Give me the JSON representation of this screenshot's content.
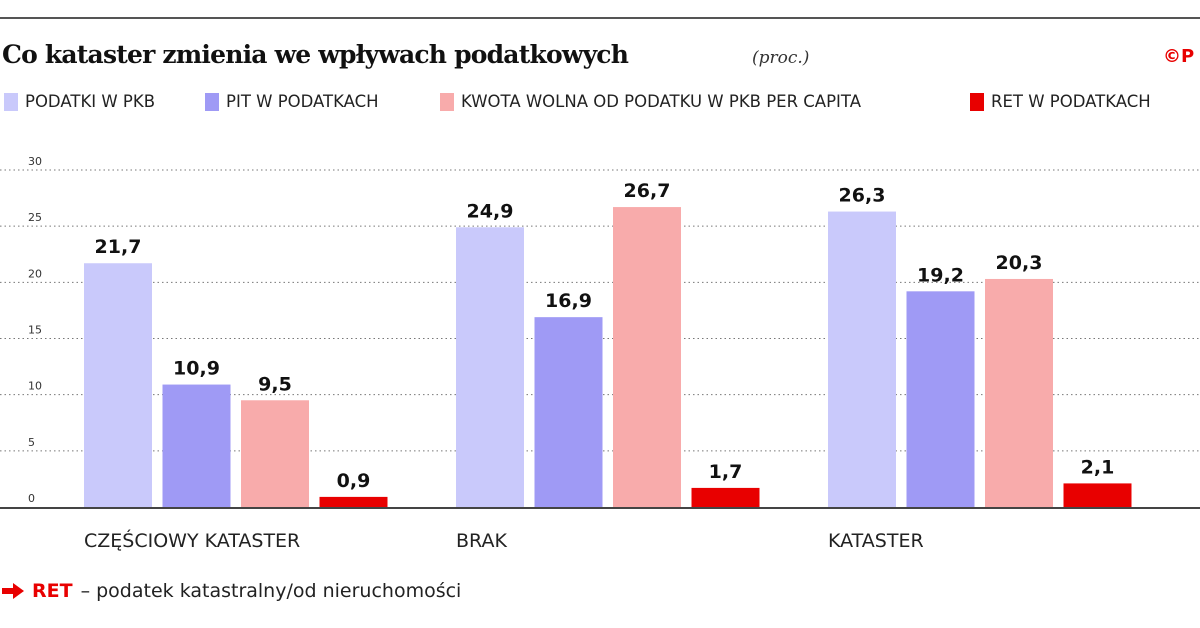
{
  "title": "Co kataster zmienia we wpływach podatkowych",
  "unit": "(proc.)",
  "logo_text": "©P",
  "footnote": {
    "term": "RET",
    "text": "– podatek katastralny/od nieruchomości",
    "icon": "arrow-right-icon"
  },
  "chart_data": {
    "type": "bar",
    "title": "Co kataster zmienia we wpływach podatkowych",
    "subtitle": "(proc.)",
    "categories": [
      "CZĘŚCIOWY KATASTER",
      "BRAK",
      "KATASTER"
    ],
    "series": [
      {
        "name": "PODATKI W PKB",
        "color": "#c9c9fb",
        "values": [
          21.7,
          24.9,
          26.3
        ],
        "labels": [
          "21,7",
          "24,9",
          "26,3"
        ]
      },
      {
        "name": "PIT W PODATKACH",
        "color": "#9f9af5",
        "values": [
          10.9,
          16.9,
          19.2
        ],
        "labels": [
          "10,9",
          "16,9",
          "19,2"
        ]
      },
      {
        "name": "KWOTA WOLNA OD PODATKU W PKB PER CAPITA",
        "color": "#f8abab",
        "values": [
          9.5,
          26.7,
          20.3
        ],
        "labels": [
          "9,5",
          "26,7",
          "20,3"
        ]
      },
      {
        "name": "RET W PODATKACH",
        "color": "#e80000",
        "values": [
          0.9,
          1.7,
          2.1
        ],
        "labels": [
          "0,9",
          "1,7",
          "2,1"
        ]
      }
    ],
    "yticks": [
      0,
      5,
      10,
      15,
      20,
      25,
      30
    ],
    "ylim": [
      0,
      30
    ],
    "grid": true,
    "legend": "top",
    "xlabel": "",
    "ylabel": ""
  }
}
